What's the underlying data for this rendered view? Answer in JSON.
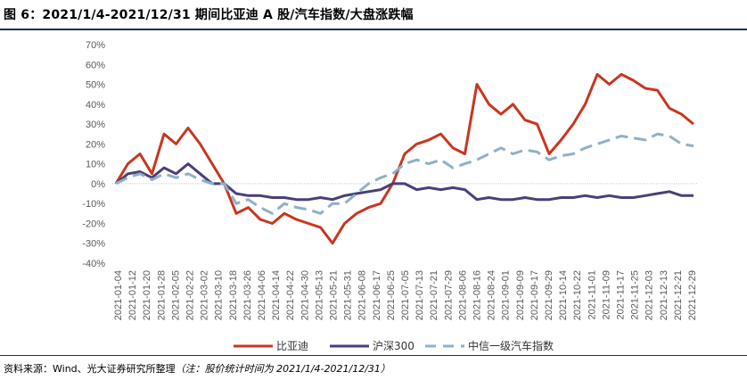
{
  "title": "图 6：2021/1/4-2021/12/31 期间比亚迪 A 股/汽车指数/大盘涨跌幅",
  "source": "资料来源：Wind、光大证券研究所整理",
  "source_note": "（注：股价统计时间为 2021/1/4-2021/12/31）",
  "chart_data": {
    "type": "line",
    "title": "2021/1/4-2021/12/31 期间比亚迪 A 股/汽车指数/大盘涨跌幅",
    "ylim": [
      -40,
      70
    ],
    "yticks": [
      "70%",
      "60%",
      "50%",
      "40%",
      "30%",
      "20%",
      "10%",
      "0%",
      "-10%",
      "-20%",
      "-30%",
      "-40%"
    ],
    "x_tick_labels": [
      "2021-01-04",
      "2021-01-12",
      "2021-01-20",
      "2021-01-28",
      "2021-02-05",
      "2021-02-22",
      "2021-03-02",
      "2021-03-10",
      "2021-03-18",
      "2021-03-26",
      "2021-04-06",
      "2021-04-14",
      "2021-04-22",
      "2021-04-30",
      "2021-05-13",
      "2021-05-21",
      "2021-05-31",
      "2021-06-08",
      "2021-06-17",
      "2021-06-25",
      "2021-07-05",
      "2021-07-13",
      "2021-07-21",
      "2021-07-29",
      "2021-08-06",
      "2021-08-16",
      "2021-08-24",
      "2021-09-01",
      "2021-09-09",
      "2021-09-17",
      "2021-09-29",
      "2021-10-14",
      "2021-10-22",
      "2021-11-01",
      "2021-11-09",
      "2021-11-17",
      "2021-11-25",
      "2021-12-03",
      "2021-12-13",
      "2021-12-21",
      "2021-12-29"
    ],
    "series": [
      {
        "name": "比亚迪",
        "color": "#c8361f",
        "style": "solid",
        "values": [
          0,
          10,
          15,
          5,
          25,
          20,
          28,
          20,
          10,
          0,
          -15,
          -12,
          -18,
          -20,
          -15,
          -18,
          -20,
          -22,
          -30,
          -20,
          -15,
          -12,
          -10,
          0,
          15,
          20,
          22,
          25,
          18,
          15,
          50,
          40,
          35,
          40,
          32,
          30,
          15,
          22,
          30,
          40,
          55,
          50,
          55,
          52,
          48,
          47,
          38,
          35,
          30
        ]
      },
      {
        "name": "沪深300",
        "color": "#4a3f7a",
        "style": "solid",
        "values": [
          0,
          5,
          6,
          3,
          8,
          5,
          10,
          5,
          0,
          0,
          -5,
          -6,
          -6,
          -7,
          -7,
          -8,
          -8,
          -7,
          -8,
          -6,
          -5,
          -4,
          -3,
          0,
          0,
          -3,
          -2,
          -3,
          -2,
          -3,
          -8,
          -7,
          -8,
          -8,
          -7,
          -8,
          -8,
          -7,
          -7,
          -6,
          -7,
          -6,
          -7,
          -7,
          -6,
          -5,
          -4,
          -6,
          -6
        ]
      },
      {
        "name": "中信一级汽车指数",
        "color": "#8db1c8",
        "style": "dashed",
        "values": [
          0,
          3,
          5,
          2,
          5,
          3,
          5,
          2,
          0,
          0,
          -10,
          -8,
          -12,
          -15,
          -10,
          -12,
          -13,
          -15,
          -10,
          -10,
          -5,
          0,
          3,
          5,
          10,
          12,
          10,
          12,
          8,
          10,
          12,
          15,
          18,
          15,
          17,
          16,
          12,
          14,
          15,
          18,
          20,
          22,
          24,
          23,
          22,
          25,
          24,
          20,
          19
        ]
      }
    ]
  }
}
